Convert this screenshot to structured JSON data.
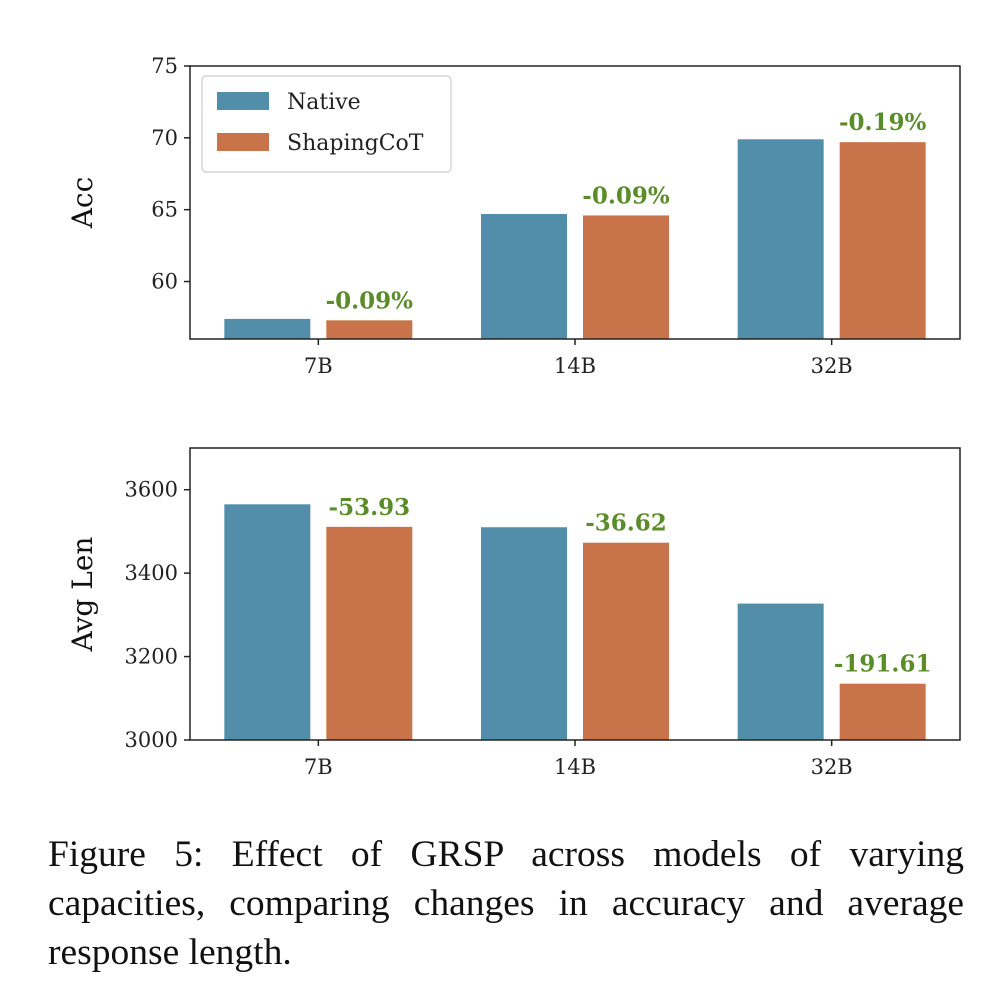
{
  "chart_data": [
    {
      "type": "bar",
      "ylabel": "Acc",
      "xlabel": "",
      "categories": [
        "7B",
        "14B",
        "32B"
      ],
      "series": [
        {
          "name": "Native",
          "values": [
            57.4,
            64.7,
            69.9
          ]
        },
        {
          "name": "ShapingCoT",
          "values": [
            57.3,
            64.6,
            69.7
          ]
        }
      ],
      "annotations": [
        "-0.09%",
        "-0.09%",
        "-0.19%"
      ],
      "ylim": [
        56,
        75
      ],
      "yticks": [
        60,
        65,
        70,
        75
      ],
      "legend": "top-left",
      "grid": false
    },
    {
      "type": "bar",
      "ylabel": "Avg Len",
      "xlabel": "",
      "categories": [
        "7B",
        "14B",
        "32B"
      ],
      "series": [
        {
          "name": "Native",
          "values": [
            3565,
            3510,
            3327
          ]
        },
        {
          "name": "ShapingCoT",
          "values": [
            3511,
            3473,
            3135
          ]
        }
      ],
      "annotations": [
        "-53.93",
        "-36.62",
        "-191.61"
      ],
      "ylim": [
        3000,
        3700
      ],
      "yticks": [
        3000,
        3200,
        3400,
        3600
      ],
      "grid": false
    }
  ],
  "colors": {
    "native": "#528daa",
    "shaping": "#c9734a",
    "annotation": "#5b8c2a"
  },
  "caption": "Figure 5:  Effect of GRSP across models of varying capacities, comparing changes in accuracy and average response length."
}
